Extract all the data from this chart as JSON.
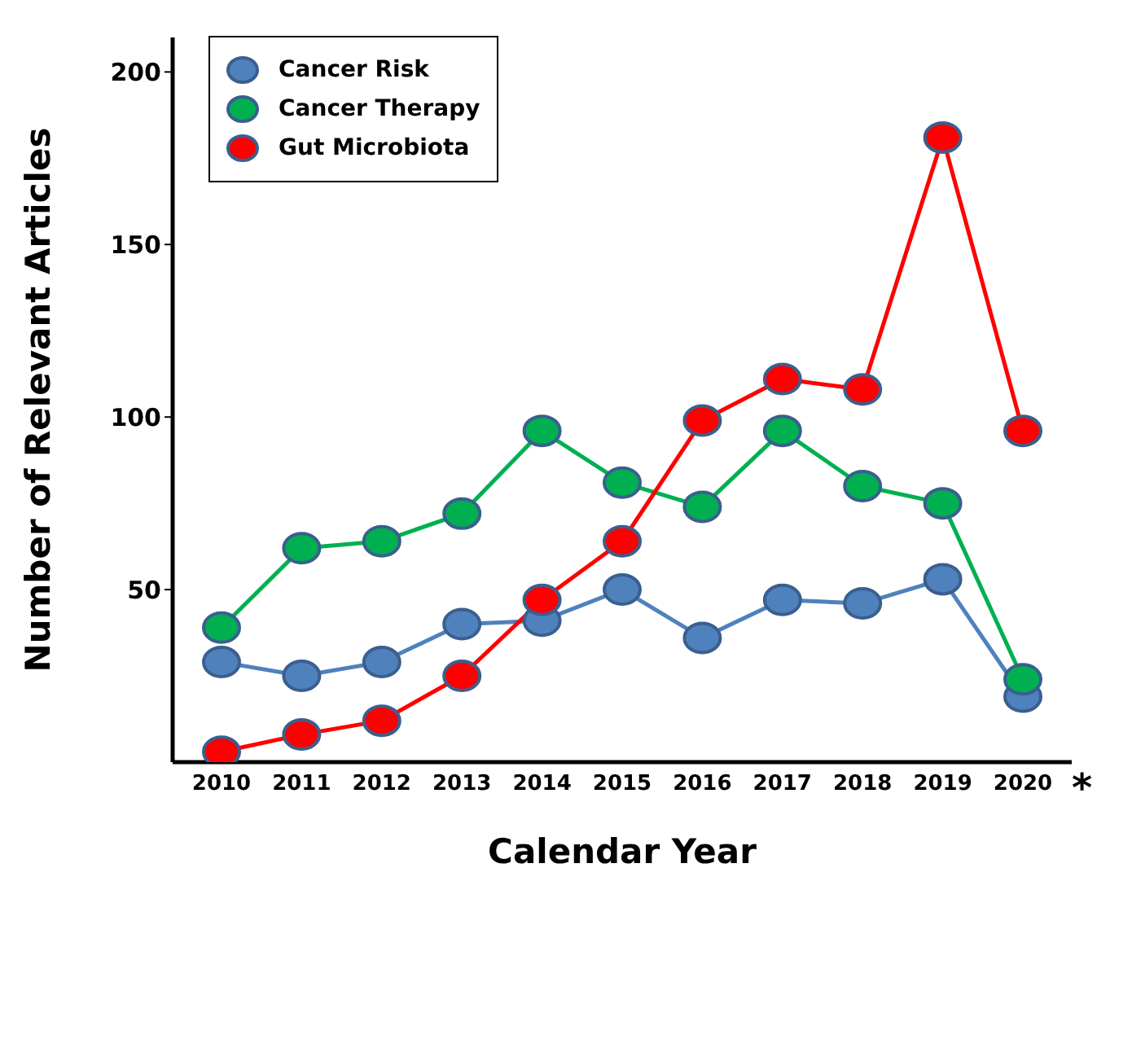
{
  "chart_data": {
    "type": "line",
    "xlabel": "Calendar Year",
    "ylabel": "Number of Relevant Articles",
    "categories": [
      "2010",
      "2011",
      "2012",
      "2013",
      "2014",
      "2015",
      "2016",
      "2017",
      "2018",
      "2019",
      "2020"
    ],
    "series": [
      {
        "name": "Cancer Risk",
        "color": "#4f81bd",
        "values": [
          29,
          25,
          29,
          40,
          41,
          50,
          36,
          47,
          46,
          53,
          19
        ]
      },
      {
        "name": "Cancer Therapy",
        "color": "#00b050",
        "values": [
          39,
          62,
          64,
          72,
          96,
          81,
          74,
          96,
          80,
          75,
          24
        ]
      },
      {
        "name": "Gut Microbiota",
        "color": "#ff0000",
        "values": [
          3,
          8,
          12,
          25,
          47,
          64,
          99,
          111,
          108,
          181,
          96
        ]
      }
    ],
    "ylim": [
      0,
      210
    ],
    "yticks": [
      50,
      100,
      150,
      200
    ],
    "legend": "top left",
    "marker": "circle",
    "line_style": "solid",
    "annotations": [
      "*"
    ]
  }
}
